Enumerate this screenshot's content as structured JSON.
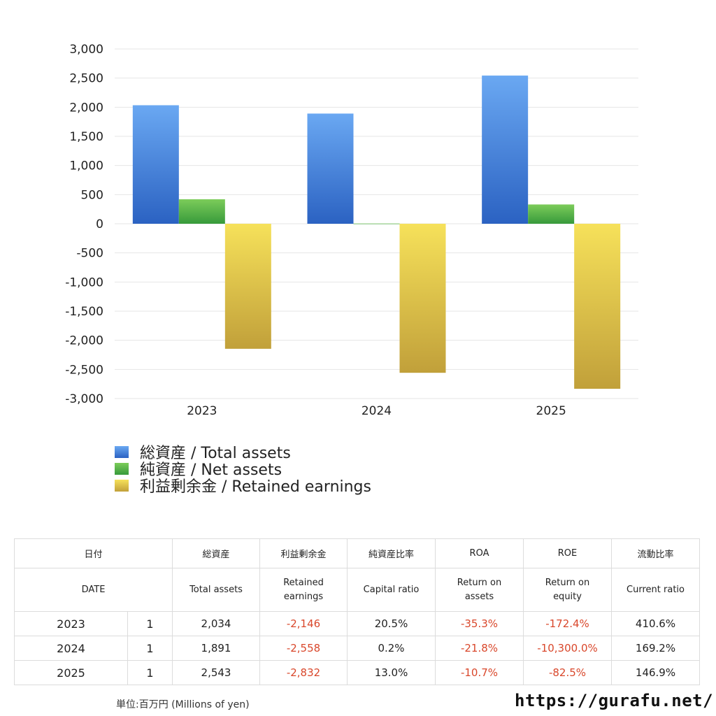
{
  "chart_data": {
    "type": "bar",
    "categories": [
      "2023",
      "2024",
      "2025"
    ],
    "series": [
      {
        "name": "総資産 / Total assets",
        "values": [
          2034,
          1891,
          2543
        ],
        "color_top": "#6aa8f2",
        "color_bottom": "#2b62c2"
      },
      {
        "name": "純資産 / Net assets",
        "values": [
          420,
          4,
          331
        ],
        "color_top": "#7ccc5a",
        "color_bottom": "#379a3b"
      },
      {
        "name": "利益剰余金 / Retained earnings",
        "values": [
          -2146,
          -2558,
          -2832
        ],
        "color_top": "#f6e15a",
        "color_bottom": "#c1a03a"
      }
    ],
    "ylim": [
      -3000,
      3000
    ],
    "yticks": [
      3000,
      2500,
      2000,
      1500,
      1000,
      500,
      0,
      -500,
      -1000,
      -1500,
      -2000,
      -2500,
      -3000
    ],
    "ytick_labels": [
      "3,000",
      "2,500",
      "2,000",
      "1,500",
      "1,000",
      "500",
      "0",
      "-500",
      "-1,000",
      "-1,500",
      "-2,000",
      "-2,500",
      "-3,000"
    ],
    "grid": true,
    "legend_position": "bottom-left"
  },
  "legend": [
    {
      "label": "総資産 / Total assets"
    },
    {
      "label": "純資産 / Net assets"
    },
    {
      "label": "利益剰余金 / Retained earnings"
    }
  ],
  "table": {
    "header_jp": {
      "date": "日付",
      "total_assets": "総資産",
      "retained": "利益剰余金",
      "capital_ratio": "純資産比率",
      "roa": "ROA",
      "roe": "ROE",
      "current_ratio": "流動比率"
    },
    "header_en": {
      "date": "DATE",
      "total_assets": "Total assets",
      "retained_1": "Retained",
      "retained_2": "earnings",
      "capital_ratio": "Capital ratio",
      "roa_1": "Return on",
      "roa_2": "assets",
      "roe_1": "Return on",
      "roe_2": "equity",
      "current_ratio": "Current ratio"
    },
    "rows": [
      {
        "date": "2023",
        "count": "1",
        "total_assets": "2,034",
        "retained": "-2,146",
        "capital_ratio": "20.5%",
        "roa": "-35.3%",
        "roe": "-172.4%",
        "current_ratio": "410.6%"
      },
      {
        "date": "2024",
        "count": "1",
        "total_assets": "1,891",
        "retained": "-2,558",
        "capital_ratio": "0.2%",
        "roa": "-21.8%",
        "roe": "-10,300.0%",
        "current_ratio": "169.2%"
      },
      {
        "date": "2025",
        "count": "1",
        "total_assets": "2,543",
        "retained": "-2,832",
        "capital_ratio": "13.0%",
        "roa": "-10.7%",
        "roe": "-82.5%",
        "current_ratio": "146.9%"
      }
    ]
  },
  "footer": {
    "unit": "単位:百万円 (Millions of yen)",
    "site": "https://gurafu.net/"
  }
}
